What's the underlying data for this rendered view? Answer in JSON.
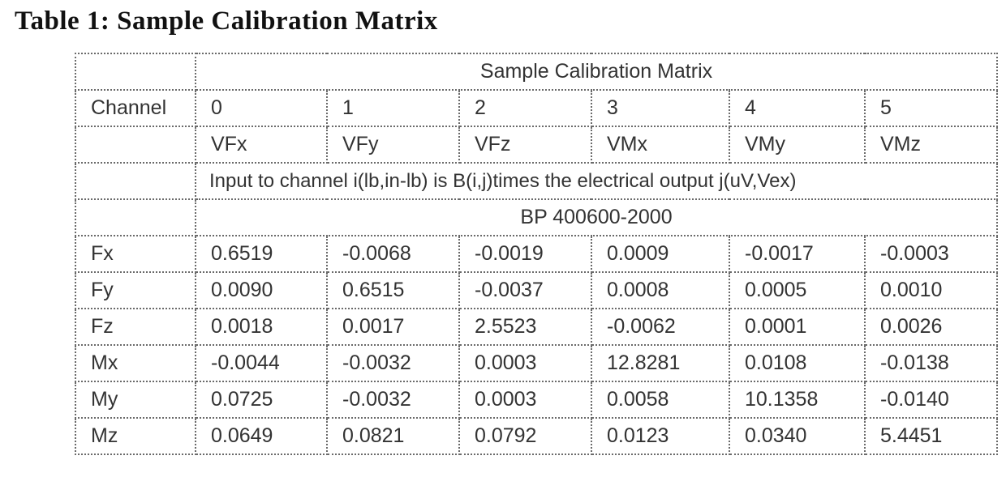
{
  "caption": "Table 1: Sample Calibration Matrix",
  "table": {
    "header_title": "Sample Calibration Matrix",
    "channel_label": "Channel",
    "channels": [
      "0",
      "1",
      "2",
      "3",
      "4",
      "5"
    ],
    "outputs": [
      "VFx",
      "VFy",
      "VFz",
      "VMx",
      "VMy",
      "VMz"
    ],
    "description": "Input to channel i(lb,in-lb) is B(i,j)times the electrical output j(uV,Vex)",
    "model": "BP 400600-2000",
    "rows": [
      {
        "label": "Fx",
        "values": [
          "0.6519",
          "-0.0068",
          "-0.0019",
          "0.0009",
          "-0.0017",
          "-0.0003"
        ]
      },
      {
        "label": "Fy",
        "values": [
          "0.0090",
          "0.6515",
          "-0.0037",
          "0.0008",
          "0.0005",
          "0.0010"
        ]
      },
      {
        "label": "Fz",
        "values": [
          "0.0018",
          "0.0017",
          "2.5523",
          "-0.0062",
          "0.0001",
          "0.0026"
        ]
      },
      {
        "label": "Mx",
        "values": [
          "-0.0044",
          "-0.0032",
          "0.0003",
          "12.8281",
          "0.0108",
          "-0.0138"
        ]
      },
      {
        "label": "My",
        "values": [
          "0.0725",
          "-0.0032",
          "0.0003",
          "0.0058",
          "10.1358",
          "-0.0140"
        ]
      },
      {
        "label": "Mz",
        "values": [
          "0.0649",
          "0.0821",
          "0.0792",
          "0.0123",
          "0.0340",
          "5.4451"
        ]
      }
    ]
  }
}
